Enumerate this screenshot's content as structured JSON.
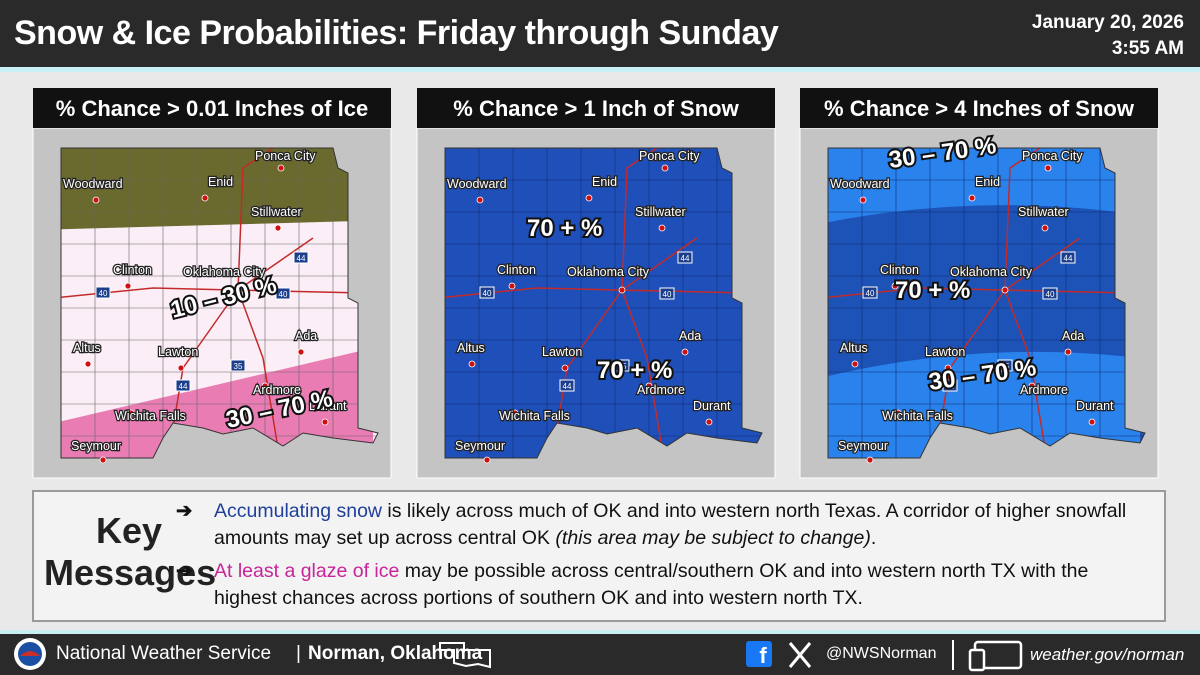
{
  "header": {
    "title": "Snow & Ice Probabilities: Friday through Sunday",
    "date": "January 20, 2026",
    "time": "3:55 AM"
  },
  "map": {
    "cities": [
      "Woodward",
      "Enid",
      "Ponca City",
      "Stillwater",
      "Clinton",
      "Oklahoma City",
      "Altus",
      "Lawton",
      "Ada",
      "Ardmore",
      "Durant",
      "Wichita Falls",
      "Seymour"
    ],
    "highways": [
      "40",
      "44",
      "35"
    ]
  },
  "panels": [
    {
      "title": "% Chance > 0.01 Inches of Ice",
      "labels": [
        "10 – 30 %",
        "30 – 70 %"
      ]
    },
    {
      "title": "% Chance > 1 Inch of Snow",
      "labels": [
        "70 + %",
        "70 + %"
      ]
    },
    {
      "title": "% Chance > 4 Inches of Snow",
      "labels": [
        "30 – 70 %",
        "70 + %",
        "30 – 70 %"
      ]
    }
  ],
  "key_messages": {
    "heading": [
      "Key",
      "Messages"
    ],
    "items": [
      {
        "highlight": "Accumulating snow",
        "text": " is likely across much of OK and into western north Texas. A corridor of higher snowfall amounts may set up across central OK ",
        "note": "(this area may be subject to change)",
        "end": "."
      },
      {
        "highlight": "At least a glaze of ice",
        "text": " may be possible across central/southern OK and into western north TX with the highest chances across portions of southern OK and into western north TX."
      }
    ]
  },
  "footer": {
    "agency": "National Weather Service",
    "separator": "|",
    "office": "Norman, Oklahoma",
    "social": "@NWSNorman",
    "website": "weather.gov/norman"
  }
}
